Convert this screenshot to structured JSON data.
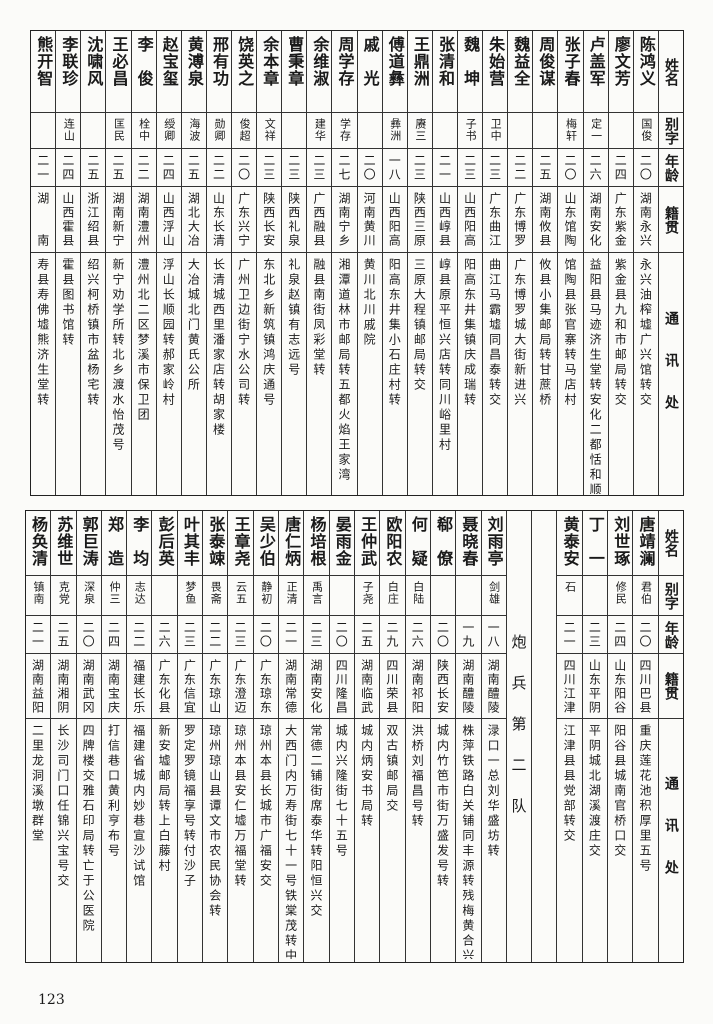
{
  "page_number": "123",
  "headers": {
    "name": "姓名",
    "alias": "别字",
    "age": "年龄",
    "hometown": "籍贯",
    "address": "通讯处"
  },
  "top_table": [
    {
      "name": "陈鸿义",
      "alias": "国俊",
      "age": "二〇",
      "hometown": "湖南永兴",
      "address": "永兴油榨墟广兴馆转交"
    },
    {
      "name": "廖文芳",
      "alias": "",
      "age": "二四",
      "hometown": "广东紫金",
      "address": "紫金县九和市邮局转交"
    },
    {
      "name": "卢盖军",
      "alias": "定一",
      "age": "二六",
      "hometown": "湖南安化",
      "address": "益阳县马迹济生堂转安化二都恬和顺"
    },
    {
      "name": "张子春",
      "alias": "梅轩",
      "age": "二〇",
      "hometown": "山东馆陶",
      "address": "馆陶县张官寨转马店村"
    },
    {
      "name": "周俊谋",
      "alias": "",
      "age": "二五",
      "hometown": "湖南攸县",
      "address": "攸县小集邮局转甘蔗桥"
    },
    {
      "name": "魏益全",
      "alias": "",
      "age": "二二",
      "hometown": "广东博罗",
      "address": "广东博罗城大街新进兴"
    },
    {
      "name": "朱始营",
      "alias": "卫中",
      "age": "二三",
      "hometown": "广东曲江",
      "address": "曲江马霸墟同昌泰转交"
    },
    {
      "name": "魏　坤",
      "alias": "子书",
      "age": "二三",
      "hometown": "山西阳高",
      "address": "阳高东井集镇庆成瑞转"
    },
    {
      "name": "张清和",
      "alias": "",
      "age": "二一",
      "hometown": "山西崞县",
      "address": "崞县原平恒兴店转同川峪里村"
    },
    {
      "name": "王鼎洲",
      "alias": "赓三",
      "age": "二三",
      "hometown": "陕西三原",
      "address": "三原大程镇邮局转交"
    },
    {
      "name": "傅道彝",
      "alias": "彝洲",
      "age": "一八",
      "hometown": "山西阳高",
      "address": "阳高东井集小石庄村转"
    },
    {
      "name": "戚　光",
      "alias": "",
      "age": "二〇",
      "hometown": "河南黄川",
      "address": "黄川北川戚院"
    },
    {
      "name": "周学存",
      "alias": "学存",
      "age": "二七",
      "hometown": "湖南宁乡",
      "address": "湘潭道林市邮局转五都火焰王家湾"
    },
    {
      "name": "余维淑",
      "alias": "建华",
      "age": "二三",
      "hometown": "广西融县",
      "address": "融县南街凤彩堂转"
    },
    {
      "name": "曹秉章",
      "alias": "",
      "age": "二三",
      "hometown": "陕西礼泉",
      "address": "礼泉赵镇有志远号"
    },
    {
      "name": "余本章",
      "alias": "文祥",
      "age": "二三",
      "hometown": "陕西长安",
      "address": "东北乡新筑镇鸿庆通号"
    },
    {
      "name": "饶英之",
      "alias": "俊超",
      "age": "二〇",
      "hometown": "广东兴宁",
      "address": "广州卫边街宁水公司转"
    },
    {
      "name": "邢有功",
      "alias": "勋卿",
      "age": "二二",
      "hometown": "山东长清",
      "address": "长清城西里潘家店转胡家楼"
    },
    {
      "name": "黄溥泉",
      "alias": "海波",
      "age": "二五",
      "hometown": "湖北大冶",
      "address": "大冶城北门黄氏公所"
    },
    {
      "name": "赵宝玺",
      "alias": "绶卿",
      "age": "二四",
      "hometown": "山西浮山",
      "address": "浮山长顺园转郝家岭村"
    },
    {
      "name": "李　俊",
      "alias": "栓中",
      "age": "二二",
      "hometown": "湖南澧州",
      "address": "澧州北二区梦溪市保卫团"
    },
    {
      "name": "王必昌",
      "alias": "匡民",
      "age": "二五",
      "hometown": "湖南新宁",
      "address": "新宁劝学所转北乡渡水怡茂号"
    },
    {
      "name": "沈啸风",
      "alias": "",
      "age": "二五",
      "hometown": "浙江绍县",
      "address": "绍兴柯桥镇市盆杨宅转"
    },
    {
      "name": "李联珍",
      "alias": "连山",
      "age": "二四",
      "hometown": "山西霍县",
      "address": "霍县图书馆转"
    },
    {
      "name": "熊开智",
      "alias": "",
      "age": "二一",
      "hometown": "湖　　南",
      "address": "寿县寿佛墟熊济生堂转"
    }
  ],
  "bottom_table": {
    "before_section": [
      {
        "name": "唐靖澜",
        "alias": "君伯",
        "age": "二〇",
        "hometown": "四川巴县",
        "address": "重庆莲花池积厚里五号"
      },
      {
        "name": "刘世琢",
        "alias": "修民",
        "age": "二四",
        "hometown": "山东阳谷",
        "address": "阳谷县城南官桥口交"
      },
      {
        "name": "丁　一",
        "alias": "",
        "age": "二三",
        "hometown": "山东平阴",
        "address": "平阴城北湖溪渡庄交"
      },
      {
        "name": "黄泰安",
        "alias": "石",
        "age": "二一",
        "hometown": "四川江津",
        "address": "江津县县党部转交"
      }
    ],
    "section_title": "炮兵第二队",
    "after_section": [
      {
        "name": "刘雨亭",
        "alias": "剑雄",
        "age": "一八",
        "hometown": "湖南醴陵",
        "address": "渌口一总刘华盛坊转"
      },
      {
        "name": "聂晓春",
        "alias": "",
        "age": "一九",
        "hometown": "湖南醴陵",
        "address": "株萍铁路白关铺同丰源转残梅黄合兴转"
      },
      {
        "name": "郗　僚",
        "alias": "",
        "age": "二〇",
        "hometown": "陕西长安",
        "address": "城内竹笆市街万盛发号转"
      },
      {
        "name": "何　疑",
        "alias": "白陆",
        "age": "二六",
        "hometown": "湖南祁阳",
        "address": "洪桥刘福昌号转"
      },
      {
        "name": "欧阳农",
        "alias": "白庄",
        "age": "二九",
        "hometown": "四川荣县",
        "address": "双古镇邮局交"
      },
      {
        "name": "王仲武",
        "alias": "子尧",
        "age": "二五",
        "hometown": "湖南临武",
        "address": "城内炳安书局转"
      },
      {
        "name": "晏雨金",
        "alias": "",
        "age": "二〇",
        "hometown": "四川隆昌",
        "address": "城内兴隆街七十五号"
      },
      {
        "name": "杨培根",
        "alias": "禹言",
        "age": "二三",
        "hometown": "湖南安化",
        "address": "常德二铺街席泰华转阳恒兴交"
      },
      {
        "name": "唐仁炳",
        "alias": "正清",
        "age": "二一",
        "hometown": "湖南常德",
        "address": "大西门内万寿街七十一号铁棠茂转中兴桥交"
      },
      {
        "name": "吴少伯",
        "alias": "静初",
        "age": "二〇",
        "hometown": "广东琼东",
        "address": "琼州本县长城市广福安交"
      },
      {
        "name": "王章尧",
        "alias": "云五",
        "age": "二三",
        "hometown": "广东澄迈",
        "address": "琼州本县安仁墟万福堂转"
      },
      {
        "name": "张泰竦",
        "alias": "畏斋",
        "age": "二二",
        "hometown": "广东琼山",
        "address": "琼州琼山县谭文市农民协会转"
      },
      {
        "name": "叶其丰",
        "alias": "梦鱼",
        "age": "二三",
        "hometown": "广东信宜",
        "address": "罗定罗镜福享号转付沙子"
      },
      {
        "name": "彭后英",
        "alias": "",
        "age": "二六",
        "hometown": "广东化县",
        "address": "新安墟邮局转上白藤村"
      },
      {
        "name": "李　均",
        "alias": "志达",
        "age": "二二",
        "hometown": "福建长乐 全峰李",
        "address": "福建省城内妙巷宣沙试馆"
      },
      {
        "name": "郑　造",
        "alias": "仲三",
        "age": "二四",
        "hometown": "湖南宝庆",
        "address": "打信巷口黄利亨布号"
      },
      {
        "name": "郭巨涛",
        "alias": "深泉",
        "age": "二〇",
        "hometown": "湖南武冈",
        "address": "四牌楼交雅石印局转亡于公医院"
      },
      {
        "name": "苏维世",
        "alias": "克党",
        "age": "二五",
        "hometown": "湖南湘阴",
        "address": "长沙司门口任锦兴宝号交"
      },
      {
        "name": "杨奂清",
        "alias": "镇南",
        "age": "二一",
        "hometown": "湖南益阳",
        "address": "二里龙洞溪墩群堂"
      }
    ]
  }
}
